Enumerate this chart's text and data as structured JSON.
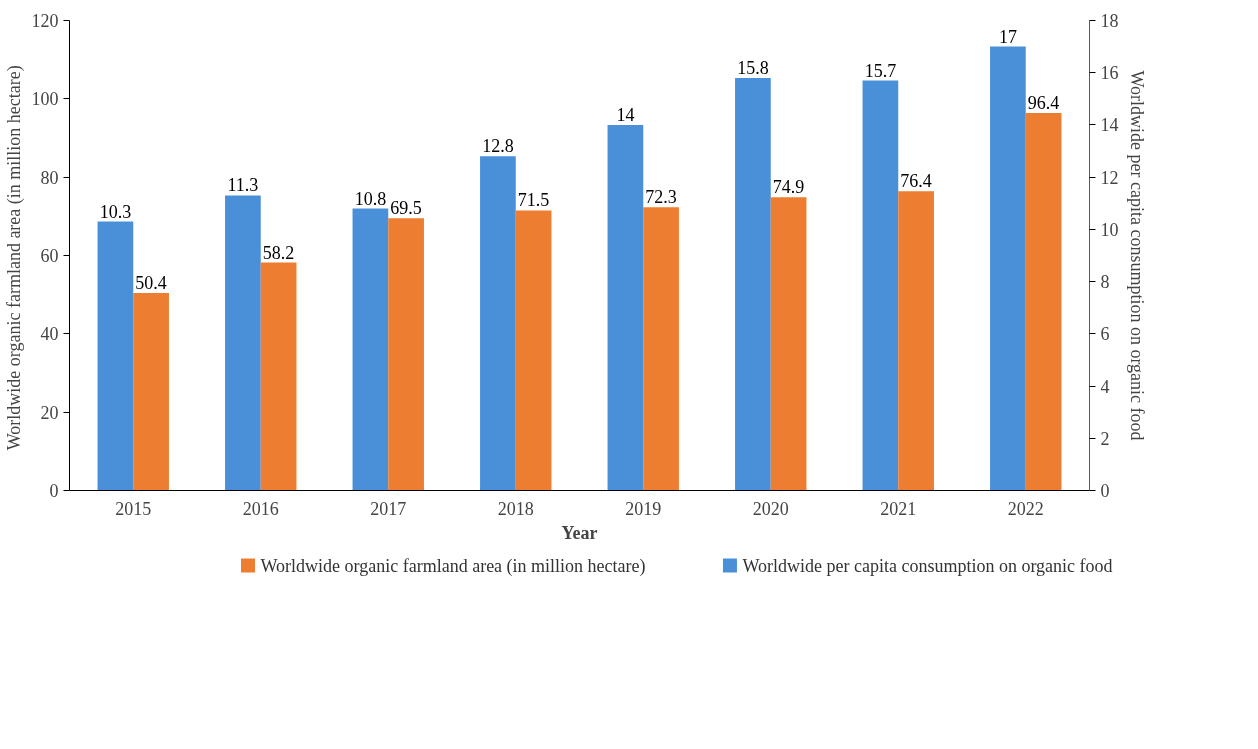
{
  "chart_data": {
    "type": "bar",
    "xlabel": "Year",
    "ylabel": "Worldwide organic farmland  area (in million hectare)",
    "y2label": "Worldwide per capita consumption on organic food",
    "categories": [
      "2015",
      "2016",
      "2017",
      "2018",
      "2019",
      "2020",
      "2021",
      "2022"
    ],
    "series": [
      {
        "name": "Worldwide per capita consumption on organic food",
        "color": "#4a90d9",
        "axis": "y2",
        "values": [
          10.3,
          11.3,
          10.8,
          12.8,
          14,
          15.8,
          15.7,
          17
        ]
      },
      {
        "name": "Worldwide organic farmland area (in million hectare)",
        "color": "#ed7d31",
        "values": [
          50.4,
          58.2,
          69.5,
          71.5,
          72.3,
          74.9,
          76.4,
          96.4
        ]
      }
    ],
    "ylim": [
      0,
      120
    ],
    "yticks": [
      0,
      20,
      40,
      60,
      80,
      100,
      120
    ],
    "y2lim": [
      0,
      18
    ],
    "y2ticks": [
      0,
      2,
      4,
      6,
      8,
      10,
      12,
      14,
      16,
      18
    ],
    "data_labels": true,
    "grid": false,
    "legend": "bottom"
  }
}
